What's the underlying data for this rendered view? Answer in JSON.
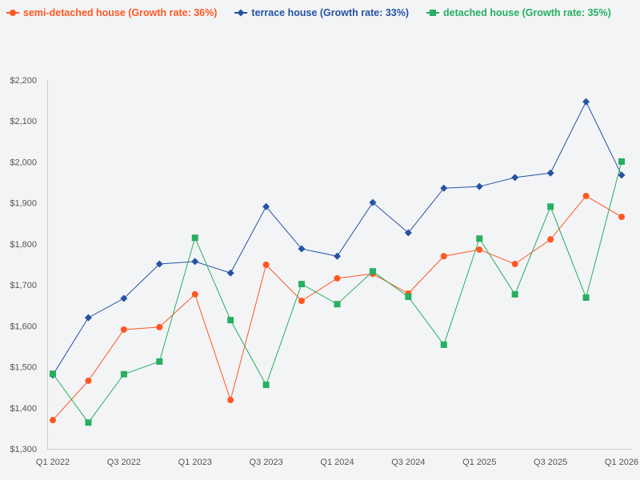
{
  "chart_data": {
    "type": "line",
    "title": "",
    "xlabel": "",
    "ylabel": "",
    "x": [
      "Q1 2022",
      "Q2 2022",
      "Q3 2022",
      "Q4 2022",
      "Q1 2023",
      "Q2 2023",
      "Q3 2023",
      "Q4 2023",
      "Q1 2024",
      "Q2 2024",
      "Q3 2024",
      "Q4 2024",
      "Q1 2025",
      "Q2 2025",
      "Q3 2025",
      "Q4 2025",
      "Q1 2026"
    ],
    "x_tick_labels": [
      "Q1 2022",
      "Q3 2022",
      "Q1 2023",
      "Q3 2023",
      "Q1 2024",
      "Q3 2024",
      "Q1 2025",
      "Q3 2025",
      "Q1 2026"
    ],
    "ylim": [
      1300,
      2200
    ],
    "y_ticks": [
      1300,
      1400,
      1500,
      1600,
      1700,
      1800,
      1900,
      2000,
      2100,
      2200
    ],
    "y_tick_labels": [
      "$1,300",
      "$1,400",
      "$1,500",
      "$1,600",
      "$1,700",
      "$1,800",
      "$1,900",
      "$2,000",
      "$2,100",
      "$2,200"
    ],
    "grid": false,
    "legend_placement": "top-left",
    "series": [
      {
        "name": "semi-detached house (Growth rate: 36%)",
        "color": "#ff5722",
        "marker": "circle",
        "values": [
          1370,
          1466,
          1591,
          1597,
          1677,
          1419,
          1749,
          1661,
          1716,
          1727,
          1679,
          1770,
          1786,
          1751,
          1811,
          1917,
          1866
        ]
      },
      {
        "name": "terrace house (Growth rate: 33%)",
        "color": "#2653a3",
        "marker": "diamond",
        "values": [
          1480,
          1620,
          1667,
          1751,
          1757,
          1729,
          1891,
          1788,
          1770,
          1901,
          1827,
          1936,
          1940,
          1962,
          1973,
          2147,
          1968
        ]
      },
      {
        "name": "detached house (Growth rate: 35%)",
        "color": "#27ae60",
        "marker": "square",
        "values": [
          1483,
          1364,
          1482,
          1513,
          1815,
          1614,
          1456,
          1702,
          1653,
          1733,
          1671,
          1554,
          1813,
          1677,
          1891,
          1669,
          2001
        ]
      }
    ]
  }
}
